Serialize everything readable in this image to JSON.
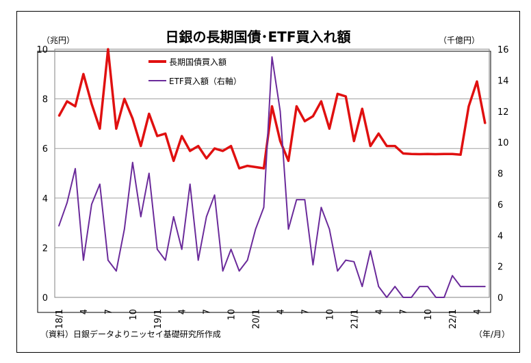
{
  "chart_data": {
    "type": "line",
    "title": "日銀の長期国債･ETF買入れ額",
    "left_unit": "（兆円）",
    "right_unit": "（千億円）",
    "x_unit": "（年/月）",
    "source": "（資料）日銀データよりニッセイ基礎研究所作成",
    "y_left_lim": [
      0,
      10
    ],
    "y_left_ticks": [
      "0",
      "2",
      "4",
      "6",
      "8",
      "10"
    ],
    "y_right_lim": [
      0,
      16
    ],
    "y_right_ticks": [
      "0",
      "2",
      "4",
      "6",
      "8",
      "10",
      "12",
      "14",
      "16"
    ],
    "x_tick_labels": [
      {
        "i": 0,
        "label": "18/1"
      },
      {
        "i": 3,
        "label": "4"
      },
      {
        "i": 6,
        "label": "7"
      },
      {
        "i": 9,
        "label": "10"
      },
      {
        "i": 12,
        "label": "19/1"
      },
      {
        "i": 15,
        "label": "4"
      },
      {
        "i": 18,
        "label": "7"
      },
      {
        "i": 21,
        "label": "10"
      },
      {
        "i": 24,
        "label": "20/1"
      },
      {
        "i": 27,
        "label": "4"
      },
      {
        "i": 30,
        "label": "7"
      },
      {
        "i": 33,
        "label": "10"
      },
      {
        "i": 36,
        "label": "21/1"
      },
      {
        "i": 39,
        "label": "4"
      },
      {
        "i": 42,
        "label": "7"
      },
      {
        "i": 45,
        "label": "10"
      },
      {
        "i": 48,
        "label": "22/1"
      },
      {
        "i": 51,
        "label": "4"
      }
    ],
    "series": [
      {
        "name": "長期国債買入額",
        "axis": "left",
        "color": "#e01010",
        "values": [
          7.3,
          7.9,
          7.7,
          9.0,
          7.8,
          6.8,
          10.0,
          6.8,
          8.0,
          7.2,
          6.1,
          7.4,
          6.5,
          6.6,
          5.5,
          6.5,
          5.9,
          6.1,
          5.6,
          6.0,
          5.9,
          6.1,
          5.2,
          5.3,
          5.25,
          5.2,
          7.7,
          6.3,
          5.5,
          7.7,
          7.1,
          7.3,
          7.9,
          6.8,
          8.2,
          8.1,
          6.3,
          7.6,
          6.1,
          6.6,
          6.1,
          6.1,
          5.8,
          5.78,
          5.77,
          5.78,
          5.77,
          5.78,
          5.78,
          5.75,
          7.7,
          8.7,
          7.0
        ]
      },
      {
        "name": "ETF買入額（右軸）",
        "axis": "right",
        "color": "#6a2a9a",
        "values": [
          4.6,
          6.1,
          8.3,
          2.4,
          6.0,
          7.3,
          2.4,
          1.7,
          4.4,
          8.7,
          5.2,
          8.0,
          3.1,
          2.4,
          5.2,
          3.1,
          7.3,
          2.4,
          5.2,
          6.6,
          1.7,
          3.1,
          1.7,
          2.4,
          4.4,
          5.8,
          15.5,
          12.0,
          4.4,
          6.3,
          6.3,
          2.1,
          5.8,
          4.4,
          1.7,
          2.4,
          2.3,
          0.7,
          3.0,
          0.7,
          0.0,
          0.7,
          0.0,
          0.0,
          0.7,
          0.7,
          0.0,
          0.0,
          1.4,
          0.7,
          0.7,
          0.7,
          0.7
        ]
      }
    ]
  }
}
